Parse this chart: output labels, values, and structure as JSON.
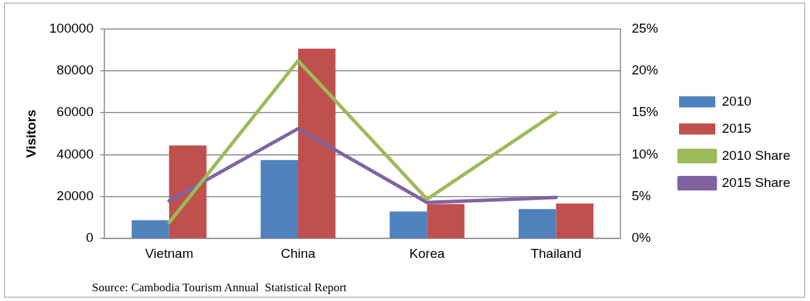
{
  "chart_data": {
    "type": "bar",
    "ylabel": "Visitors",
    "categories": [
      "Vietnam",
      "China",
      "Korea",
      "Thailand"
    ],
    "series": [
      {
        "name": "2010",
        "color": "#4f81bd",
        "values": [
          8800,
          37400,
          12900,
          14100
        ]
      },
      {
        "name": "2015",
        "color": "#c0504d",
        "values": [
          44400,
          90500,
          16500,
          16700
        ]
      },
      {
        "name": "2010 Share",
        "type": "line",
        "axis": "y2",
        "color": "#9bbb59",
        "values": [
          1.9,
          21.2,
          4.7,
          15.0
        ]
      },
      {
        "name": "2015 Share",
        "type": "line",
        "axis": "y2",
        "color": "#8064a2",
        "values": [
          4.5,
          13.1,
          4.3,
          4.9
        ]
      }
    ],
    "ylim": [
      0,
      100000
    ],
    "yticks": [
      0,
      20000,
      40000,
      60000,
      80000,
      100000
    ],
    "y2lim": [
      0,
      25
    ],
    "y2ticks": [
      {
        "value": 0,
        "label": "0%"
      },
      {
        "value": 5,
        "label": "5%"
      },
      {
        "value": 10,
        "label": "10%"
      },
      {
        "value": 15,
        "label": "15%"
      },
      {
        "value": 20,
        "label": "20%"
      },
      {
        "value": 25,
        "label": "25%"
      }
    ],
    "grid": "y",
    "legend": "right",
    "marker": "none",
    "annotations": [
      "Source: Cambodia Tourism Annual  Statistical Report"
    ]
  }
}
